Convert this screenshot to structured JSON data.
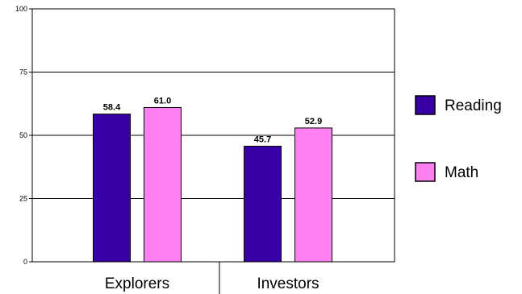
{
  "chart_data": {
    "type": "bar",
    "title": "",
    "xlabel": "",
    "ylabel": "",
    "categories": [
      "Explorers",
      "Investors"
    ],
    "series": [
      {
        "name": "Reading",
        "values": [
          58.4,
          45.7
        ],
        "labels": [
          "58.4",
          "45.7"
        ],
        "color": "#3A00A8"
      },
      {
        "name": "Math",
        "values": [
          61.0,
          52.9
        ],
        "labels": [
          "61.0",
          "52.9"
        ],
        "color": "#FF7FF0"
      }
    ],
    "ylim": [
      0,
      100
    ],
    "yticks": [
      0,
      25,
      50,
      75,
      100
    ],
    "ytick_labels": [
      "0",
      "25",
      "50",
      "75",
      "100"
    ],
    "grid": true,
    "legend": "right"
  }
}
